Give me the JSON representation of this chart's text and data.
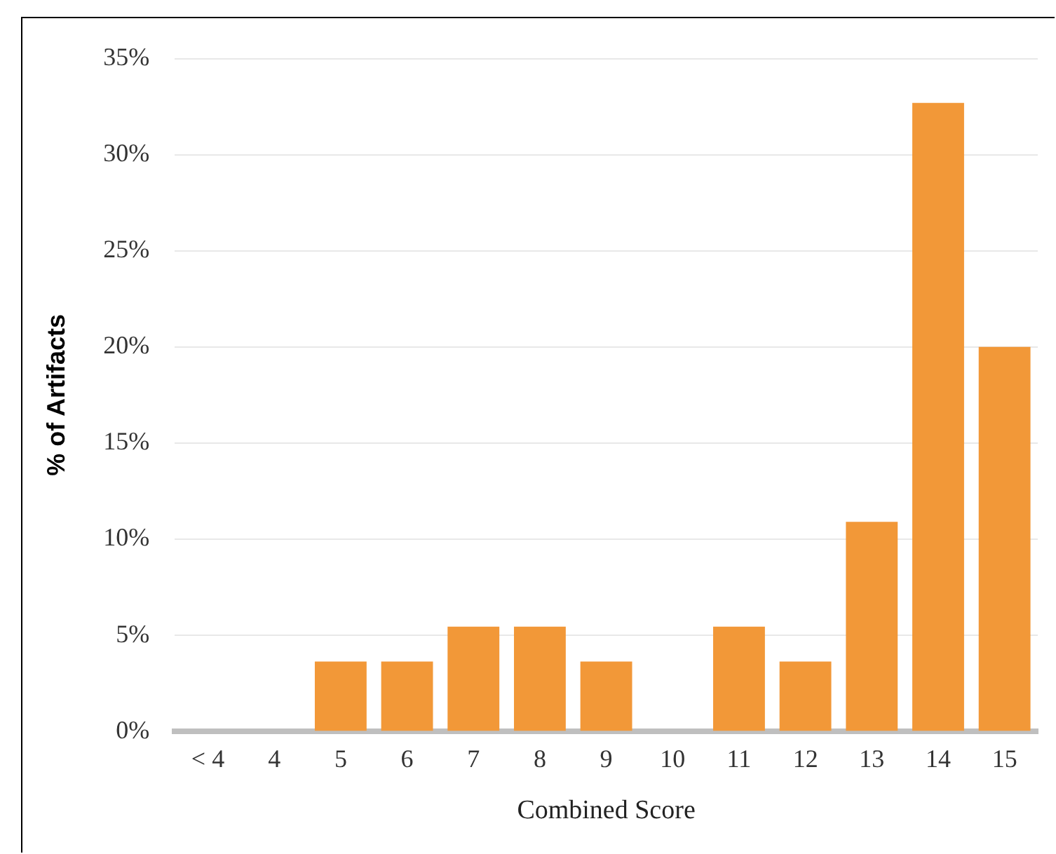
{
  "chart_data": {
    "type": "bar",
    "xlabel": "Combined Score",
    "ylabel": "% of Artifacts",
    "categories": [
      "< 4",
      "4",
      "5",
      "6",
      "7",
      "8",
      "9",
      "10",
      "11",
      "12",
      "13",
      "14",
      "15"
    ],
    "values": [
      0,
      0,
      3.64,
      3.64,
      5.45,
      5.45,
      3.64,
      0,
      5.45,
      3.64,
      10.9,
      32.7,
      20
    ],
    "color": "#f29838",
    "ylim": [
      0,
      35
    ],
    "yticks": [
      {
        "value": 0,
        "label": "0%"
      },
      {
        "value": 5,
        "label": "5%"
      },
      {
        "value": 10,
        "label": "10%"
      },
      {
        "value": 15,
        "label": "15%"
      },
      {
        "value": 20,
        "label": "20%"
      },
      {
        "value": 25,
        "label": "25%"
      },
      {
        "value": 30,
        "label": "30%"
      },
      {
        "value": 35,
        "label": "35%"
      }
    ],
    "grid": "y",
    "legend": false
  }
}
